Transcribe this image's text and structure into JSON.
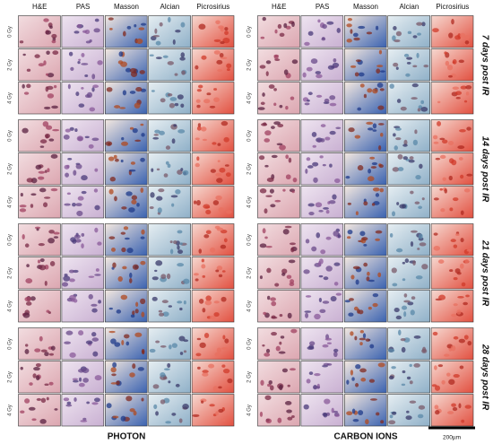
{
  "columns": [
    "H&E",
    "PAS",
    "Masson",
    "Alcian",
    "Picrosirius"
  ],
  "doses": [
    "0 Gy",
    "2 Gy",
    "4 Gy"
  ],
  "timepoints": [
    "7 days post IR",
    "14 days post IR",
    "21 days post IR",
    "28 days post IR"
  ],
  "panels": [
    {
      "label": "PHOTON"
    },
    {
      "label": "CARBON IONS"
    }
  ],
  "scale_bar": "200µm"
}
